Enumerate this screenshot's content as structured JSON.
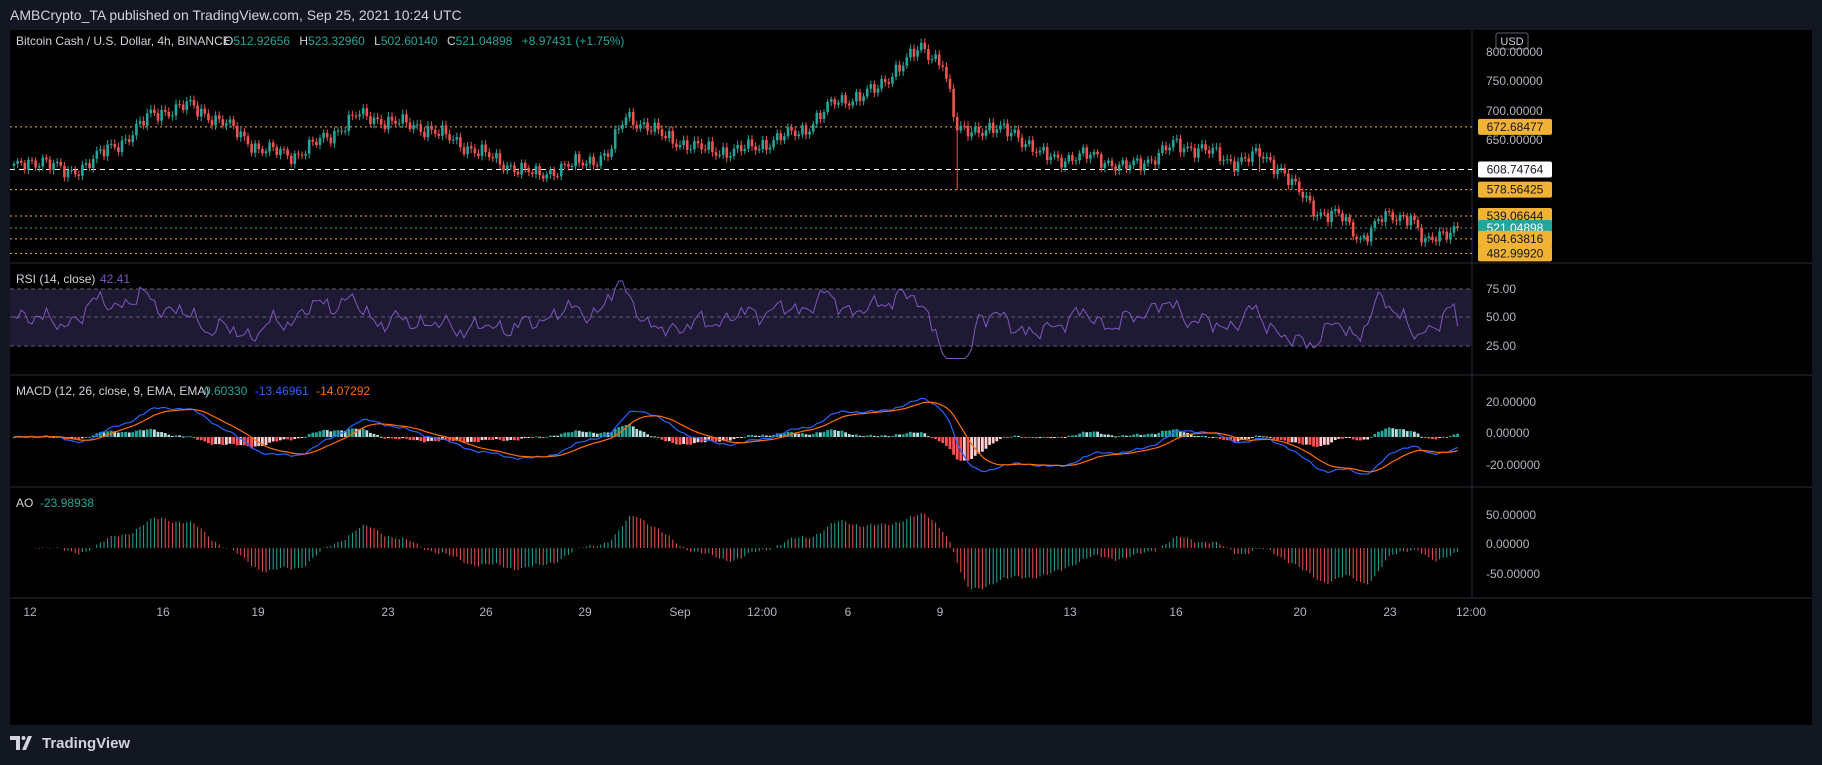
{
  "header": {
    "publisher": "AMBCrypto_TA published on TradingView.com, Sep 25, 2021 10:24 UTC"
  },
  "price_pane": {
    "symbol": "Bitcoin Cash / U.S. Dollar, 4h, BINANCE",
    "o_label": "O",
    "o": "512.92656",
    "h_label": "H",
    "h": "523.32960",
    "l_label": "L",
    "l": "502.60140",
    "c_label": "C",
    "c": "521.04898",
    "change": "+8.97431 (+1.75%)",
    "currency": "USD",
    "axis_ticks": [
      "800.00000",
      "750.00000",
      "700.00000",
      "650.00000"
    ],
    "levels": [
      {
        "label": "672.68477",
        "value": 672.68477,
        "color": "#f2b233"
      },
      {
        "label": "608.74764",
        "value": 608.74764,
        "color": "#ffffff"
      },
      {
        "label": "578.56425",
        "value": 578.56425,
        "color": "#f2b233"
      },
      {
        "label": "539.06644",
        "value": 539.06644,
        "color": "#f2b233"
      },
      {
        "label": "521.04898",
        "value": 521.04898,
        "color": "#26a69a"
      },
      {
        "label": "504.63816",
        "value": 504.63816,
        "color": "#f2b233"
      },
      {
        "label": "482.99920",
        "value": 482.9992,
        "color": "#f2b233"
      }
    ],
    "up_color": "#26a69a",
    "down_color": "#ef5350"
  },
  "rsi_pane": {
    "title": "RSI (14, close)",
    "value": "42.41",
    "ticks": [
      "75.00",
      "50.00",
      "25.00"
    ],
    "color": "#7e57c2"
  },
  "macd_pane": {
    "title": "MACD (12, 26, close, 9, EMA, EMA)",
    "hist": "0.60330",
    "macd": "-13.46961",
    "signal": "-14.07292",
    "ticks": [
      "20.00000",
      "0.00000",
      "-20.00000"
    ]
  },
  "ao_pane": {
    "title": "AO",
    "value": "-23.98938",
    "ticks": [
      "50.00000",
      "0.00000",
      "-50.00000"
    ]
  },
  "time_axis": [
    "12",
    "16",
    "19",
    "23",
    "26",
    "29",
    "Sep",
    "12:00",
    "6",
    "9",
    "13",
    "16",
    "20",
    "23",
    "12:00"
  ],
  "footer": {
    "brand": "TradingView"
  },
  "chart_data": {
    "type": "candlestick",
    "title": "Bitcoin Cash / U.S. Dollar, 4h, BINANCE",
    "ylim": [
      470,
      815
    ],
    "x_ticks": [
      "12",
      "16",
      "19",
      "23",
      "26",
      "29",
      "Sep",
      "12:00",
      "6",
      "9",
      "13",
      "16",
      "20",
      "23",
      "12:00"
    ],
    "anchors": [
      [
        0,
        610
      ],
      [
        8,
        625
      ],
      [
        15,
        600
      ],
      [
        22,
        625
      ],
      [
        30,
        650
      ],
      [
        38,
        690
      ],
      [
        48,
        705
      ],
      [
        58,
        680
      ],
      [
        68,
        640
      ],
      [
        78,
        630
      ],
      [
        88,
        660
      ],
      [
        95,
        690
      ],
      [
        105,
        680
      ],
      [
        115,
        670
      ],
      [
        125,
        645
      ],
      [
        135,
        620
      ],
      [
        145,
        600
      ],
      [
        155,
        615
      ],
      [
        165,
        630
      ],
      [
        170,
        690
      ],
      [
        180,
        660
      ],
      [
        190,
        640
      ],
      [
        200,
        635
      ],
      [
        210,
        650
      ],
      [
        220,
        670
      ],
      [
        228,
        710
      ],
      [
        236,
        720
      ],
      [
        240,
        730
      ],
      [
        245,
        760
      ],
      [
        252,
        790
      ],
      [
        258,
        770
      ],
      [
        262,
        665
      ],
      [
        268,
        670
      ],
      [
        278,
        665
      ],
      [
        285,
        630
      ],
      [
        292,
        625
      ],
      [
        300,
        630
      ],
      [
        308,
        610
      ],
      [
        316,
        625
      ],
      [
        322,
        645
      ],
      [
        330,
        640
      ],
      [
        338,
        620
      ],
      [
        346,
        630
      ],
      [
        352,
        610
      ],
      [
        356,
        580
      ],
      [
        362,
        545
      ],
      [
        368,
        540
      ],
      [
        374,
        505
      ],
      [
        380,
        535
      ],
      [
        388,
        540
      ],
      [
        392,
        495
      ],
      [
        397,
        515
      ],
      [
        400,
        521
      ]
    ],
    "rsi": {
      "ylim": [
        0,
        100
      ],
      "value": 42.41
    },
    "macd": {
      "macd": -13.46961,
      "signal": -14.07292,
      "hist": 0.6033
    },
    "ao": {
      "value": -23.98938
    }
  }
}
